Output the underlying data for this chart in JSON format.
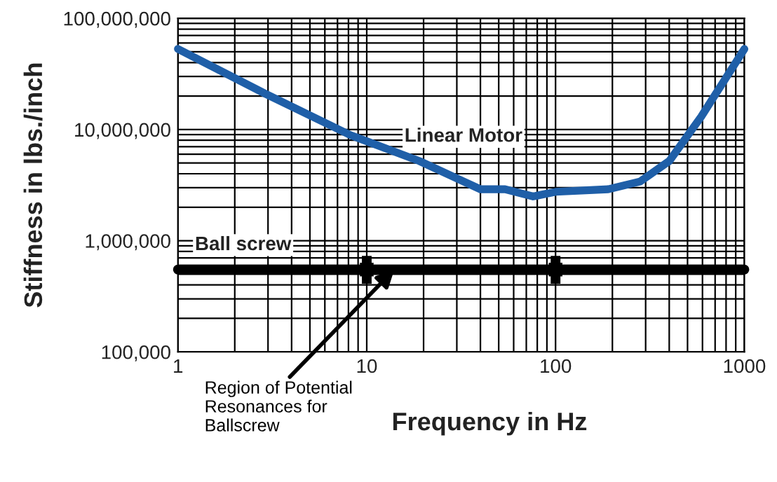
{
  "chart_data": {
    "type": "line",
    "xlabel": "Frequency in Hz",
    "ylabel": "Stiffness in lbs./inch",
    "log": "xy",
    "xlim": [
      1,
      1000
    ],
    "ylim": [
      100000,
      100000000
    ],
    "xticks": [
      1,
      10,
      100,
      1000
    ],
    "yticks": [
      {
        "value": 100000,
        "label": "100,000"
      },
      {
        "value": 1000000,
        "label": "1,000,000"
      },
      {
        "value": 10000000,
        "label": "10,000,000"
      },
      {
        "value": 100000000,
        "label": "100,000,000"
      }
    ],
    "grid": true,
    "legend": false,
    "marker": "none",
    "line_style": "solid",
    "series": [
      {
        "name": "Linear Motor",
        "color": "#1f5fa8",
        "x": [
          1,
          2.9,
          8.2,
          19,
          40,
          54,
          76,
          100,
          190,
          280,
          400,
          590,
          1000
        ],
        "values": [
          53000000,
          21000000,
          8900000,
          5200000,
          2900000,
          2900000,
          2500000,
          2750000,
          2900000,
          3400000,
          5200000,
          13000000,
          53000000
        ]
      },
      {
        "name": "Ball screw",
        "color": "#000000",
        "x": [
          1,
          1000
        ],
        "values": [
          550000,
          550000
        ]
      },
      {
        "type": "scatter",
        "color": "#000000",
        "marker": "square",
        "x": [
          10,
          100
        ],
        "values": [
          550000,
          550000
        ],
        "errors": [
          [
            410000,
            730000
          ],
          [
            410000,
            730000
          ]
        ]
      }
    ],
    "annotations": [
      {
        "text": "Region of Potential\nResonances for\nBallscrew",
        "x": 14,
        "y": 550000
      }
    ]
  }
}
